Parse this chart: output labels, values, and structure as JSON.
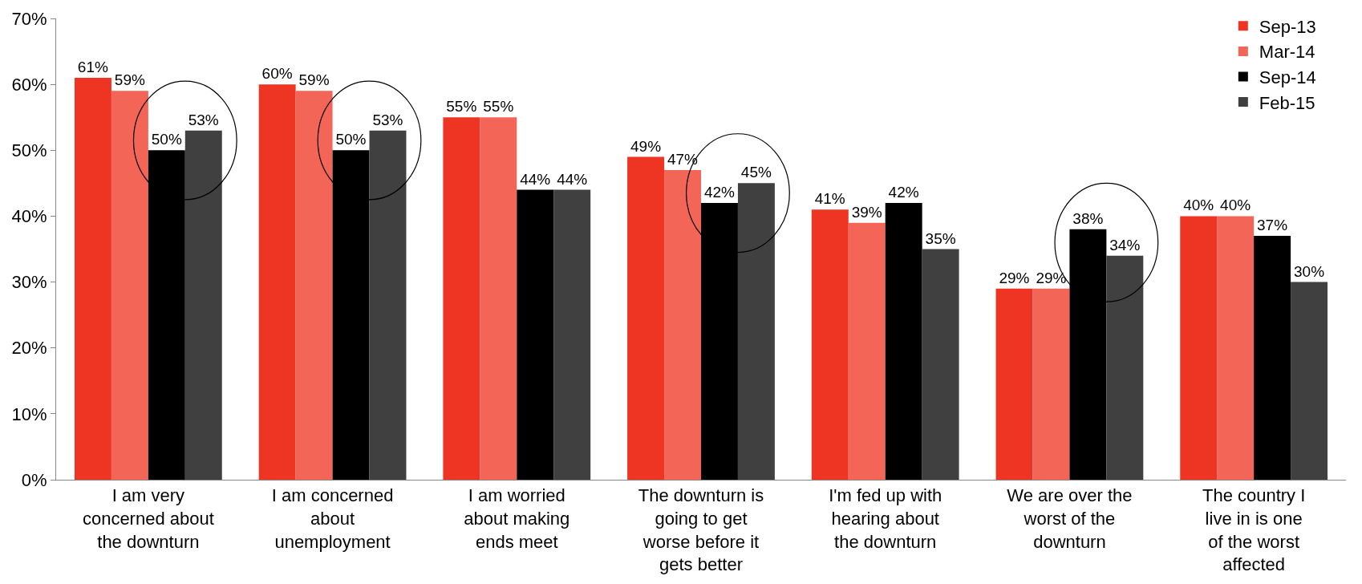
{
  "chart_data": {
    "type": "bar",
    "categories": [
      "I am very concerned about the downturn",
      "I am concerned about unemployment",
      "I am worried about making ends meet",
      "The downturn is going to get worse before it gets better",
      "I'm fed up with hearing about the downturn",
      "We are over the worst of the downturn",
      "The country I live in is one of the worst affected"
    ],
    "series": [
      {
        "name": "Sep-13",
        "color": "#ee3524",
        "values": [
          61,
          60,
          55,
          49,
          41,
          29,
          40
        ],
        "value_labels": [
          "61%",
          "60%",
          "55%",
          "49%",
          "41%",
          "29%",
          "40%"
        ]
      },
      {
        "name": "Mar-14",
        "color": "#f26557",
        "values": [
          59,
          59,
          55,
          47,
          39,
          29,
          40
        ],
        "value_labels": [
          "59%",
          "59%",
          "55%",
          "47%",
          "39%",
          "29%",
          "40%"
        ]
      },
      {
        "name": "Sep-14",
        "color": "#000000",
        "values": [
          50,
          50,
          44,
          42,
          42,
          38,
          37
        ],
        "value_labels": [
          "50%",
          "50%",
          "44%",
          "42%",
          "42%",
          "38%",
          "37%"
        ]
      },
      {
        "name": "Feb-15",
        "color": "#404040",
        "values": [
          53,
          53,
          44,
          45,
          35,
          34,
          30
        ],
        "value_labels": [
          "53%",
          "53%",
          "44%",
          "45%",
          "35%",
          "34%",
          "30%"
        ]
      }
    ],
    "ylim": [
      0,
      70
    ],
    "yticks": [
      {
        "value": 0,
        "label": "0%"
      },
      {
        "value": 10,
        "label": "10%"
      },
      {
        "value": 20,
        "label": "20%"
      },
      {
        "value": 30,
        "label": "30%"
      },
      {
        "value": 40,
        "label": "40%"
      },
      {
        "value": 50,
        "label": "50%"
      },
      {
        "value": 60,
        "label": "60%"
      },
      {
        "value": 70,
        "label": "70%"
      }
    ],
    "grid": false,
    "legend": "top right"
  }
}
